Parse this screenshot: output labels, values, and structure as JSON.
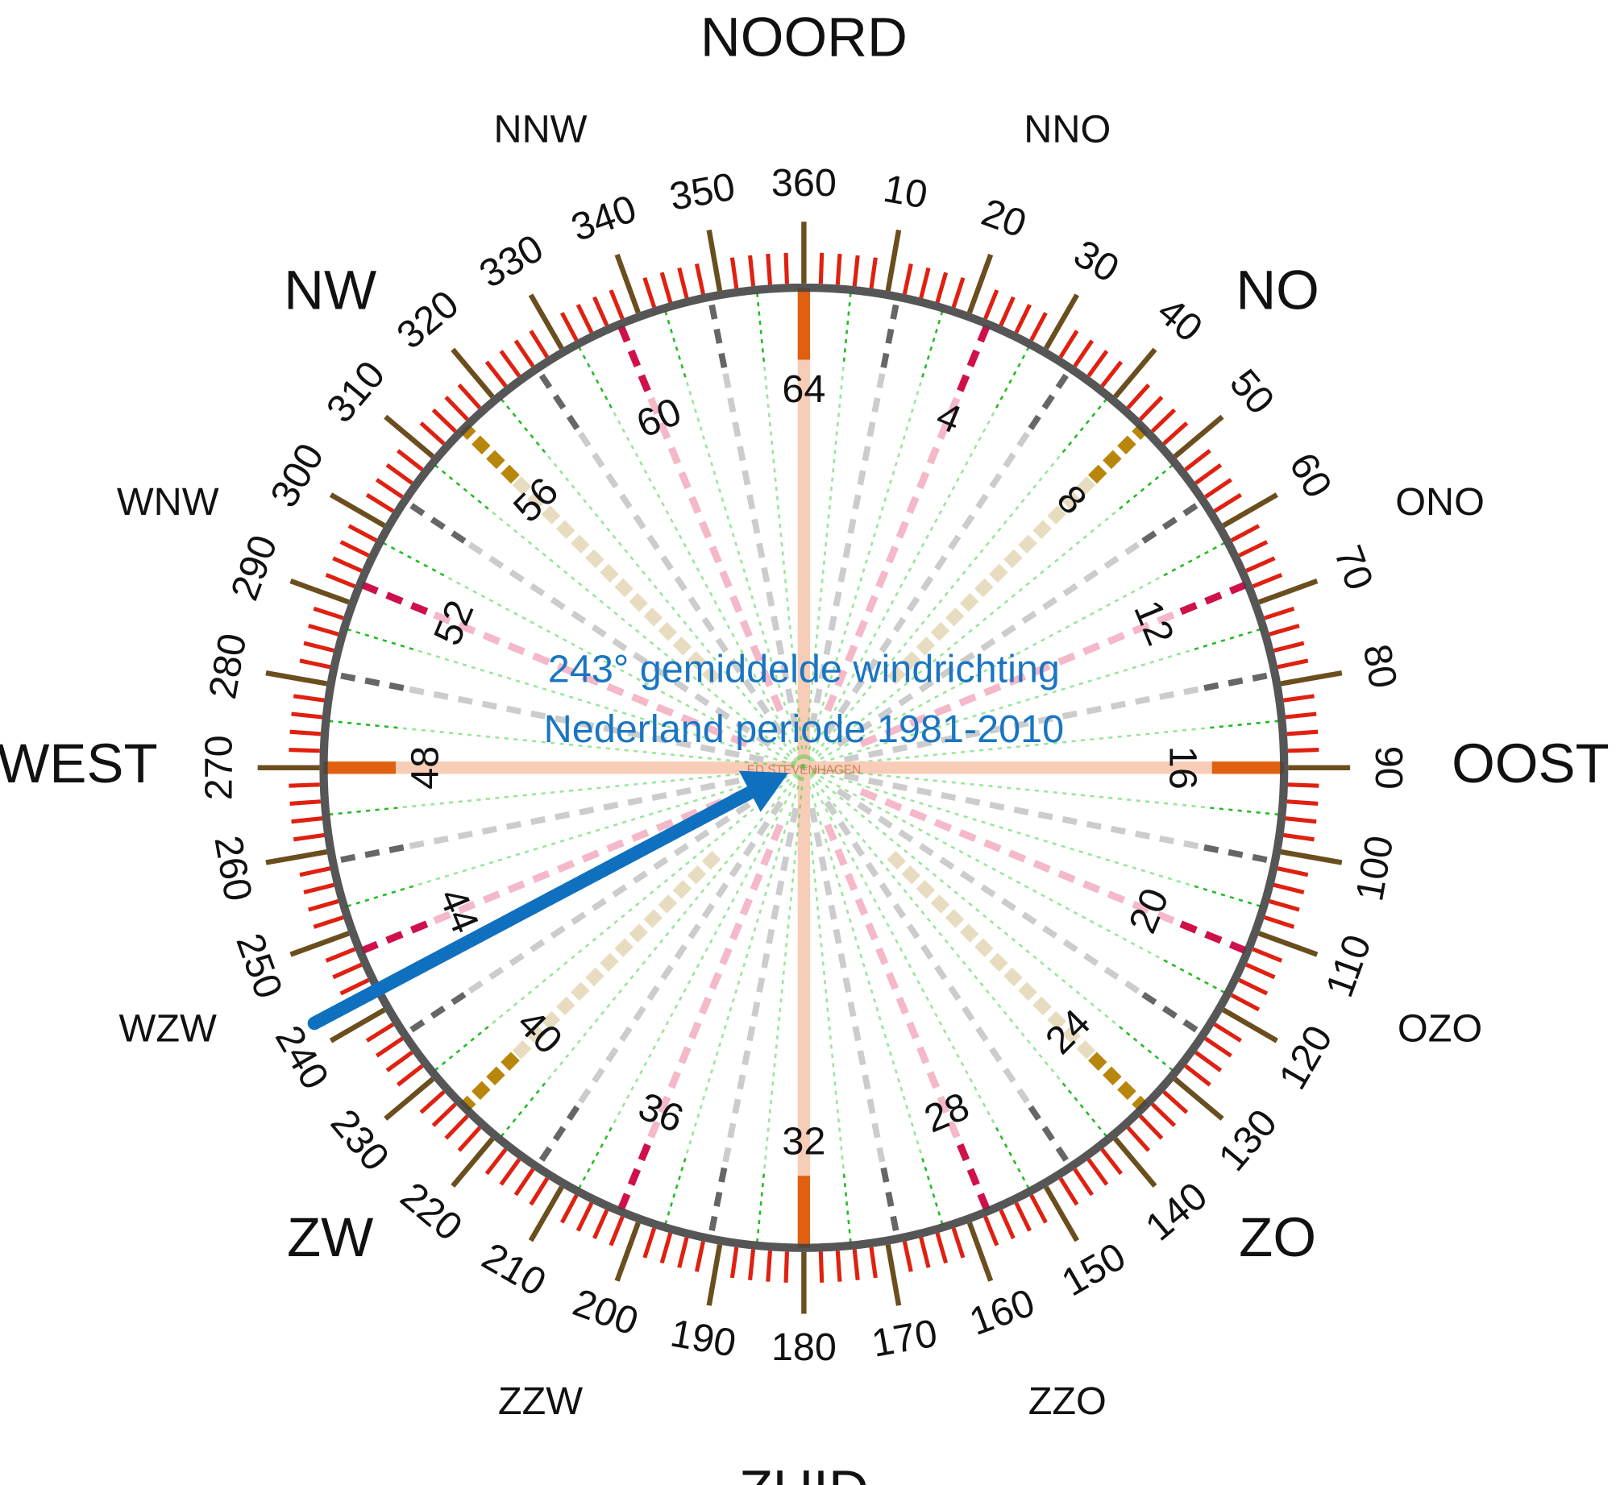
{
  "cardinals": [
    "NOORD",
    "NO",
    "OOST",
    "ZO",
    "ZUID",
    "ZW",
    "WEST",
    "NW"
  ],
  "intercardinals": [
    "NNO",
    "ONO",
    "OZO",
    "ZZO",
    "ZZW",
    "WZW",
    "WNW",
    "NNW"
  ],
  "degrees": [
    10,
    20,
    30,
    40,
    50,
    60,
    70,
    80,
    90,
    100,
    110,
    120,
    130,
    140,
    150,
    160,
    170,
    180,
    190,
    200,
    210,
    220,
    230,
    240,
    250,
    260,
    270,
    280,
    290,
    300,
    310,
    320,
    330,
    340,
    350,
    360
  ],
  "inner_numbers": [
    4,
    8,
    12,
    16,
    20,
    24,
    28,
    32,
    36,
    40,
    44,
    48,
    52,
    56,
    60,
    64
  ],
  "caption": [
    "243° gemiddelde windrichting",
    "Nederland periode 1981-2010"
  ],
  "watermark": "ED STEVENHAGEN"
}
